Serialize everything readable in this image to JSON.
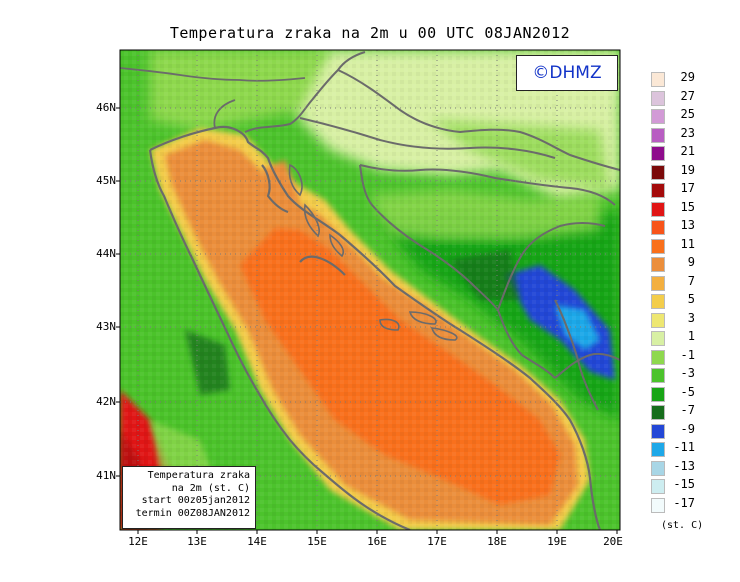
{
  "title": "Temperatura zraka na 2m u 00 UTC 08JAN2012",
  "logo_text": "©DHMZ",
  "infobox": {
    "line1": "Temperatura zraka",
    "line2": "na 2m (st. C)",
    "line3": "start 00z05jan2012",
    "line4": "termin 00Z08JAN2012"
  },
  "lat_labels": [
    "46N",
    "45N",
    "44N",
    "43N",
    "42N",
    "41N"
  ],
  "lon_labels": [
    "12E",
    "13E",
    "14E",
    "15E",
    "16E",
    "17E",
    "18E",
    "19E",
    "20E"
  ],
  "legend": {
    "units": "(st. C)",
    "labels": [
      "29",
      "27",
      "25",
      "23",
      "21",
      "19",
      "17",
      "15",
      "13",
      "11",
      "9",
      "7",
      "5",
      "3",
      "1",
      "-1",
      "-3",
      "-5",
      "-7",
      "-9",
      "-11",
      "-13",
      "-15",
      "-17"
    ],
    "colors": [
      "#fbe8d6",
      "#dcc4dc",
      "#d29ad6",
      "#b85dc2",
      "#8e0c8c",
      "#7b0a0a",
      "#a40b0b",
      "#e01515",
      "#f7541a",
      "#f9701b",
      "#eb8e3b",
      "#f3af3f",
      "#f3cd4b",
      "#eee772",
      "#d8f0a4",
      "#8ed84e",
      "#4cc32c",
      "#18a516",
      "#176e1c",
      "#2347d6",
      "#1ea8e8",
      "#a8d6e6",
      "#cdedf0",
      "#f2fbfc"
    ]
  },
  "colors": {
    "sea_warm": "#f9701b",
    "sea_mild": "#eb8e3b",
    "coast_ring": "#f3cd4b",
    "land_mild": "#d8f0a4",
    "land_green": "#8ed84e",
    "land_cold": "#18a516",
    "land_frost": "#2347d6"
  }
}
